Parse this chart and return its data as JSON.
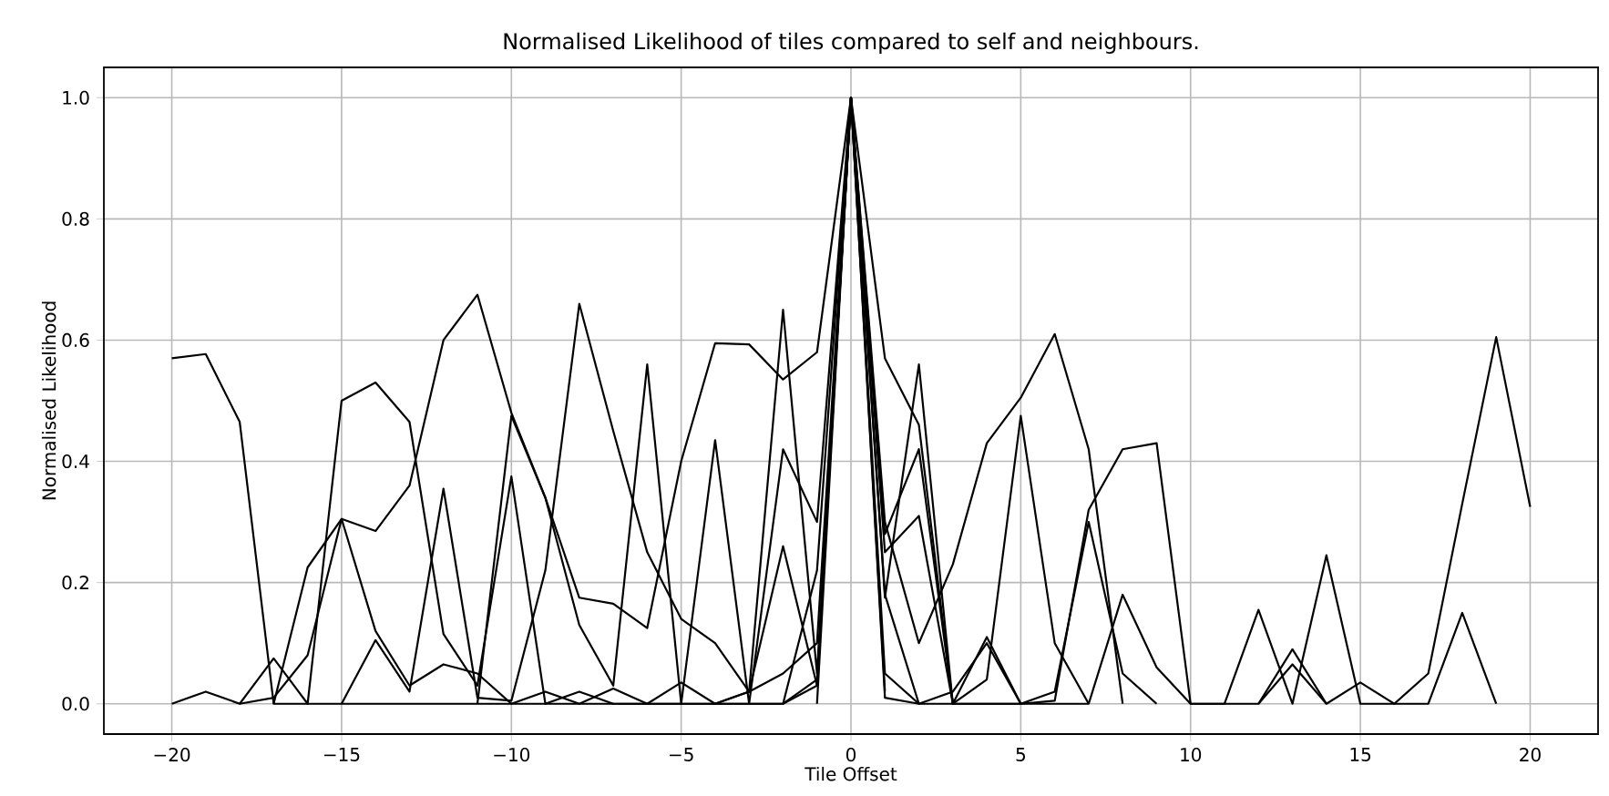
{
  "chart_data": {
    "type": "line",
    "title": "Normalised Likelihood of tiles compared to self and neighbours.",
    "xlabel": "Tile Offset",
    "ylabel": "Normalised Likelihood",
    "series": [
      {
        "color": "#000000",
        "x": [
          -20,
          -19,
          -18,
          -17,
          -16,
          -15,
          -14,
          -13,
          -12,
          -11,
          -10,
          -9,
          -8,
          -7,
          -6,
          -5,
          -4,
          -3,
          -2,
          -1,
          0,
          1
        ],
        "values": [
          0.57,
          0.577,
          0.465,
          0,
          0,
          0,
          0,
          0,
          0,
          0,
          0,
          0,
          0,
          0,
          0,
          0,
          0,
          0,
          0,
          0.03,
          1,
          0.02
        ]
      },
      {
        "color": "#000000",
        "x": [
          -20,
          -19,
          -18,
          -17,
          -16,
          -15,
          -14,
          -13,
          -12,
          -11,
          -10,
          -9,
          -8,
          -7,
          -6,
          -5,
          -4,
          -3,
          -2,
          -1,
          0,
          1,
          2
        ],
        "values": [
          0,
          0.02,
          0,
          0.075,
          0,
          0.5,
          0.53,
          0.465,
          0.115,
          0.03,
          0.375,
          0,
          0.02,
          0,
          0,
          0,
          0,
          0,
          0,
          0.04,
          1,
          0.18,
          0
        ]
      },
      {
        "color": "#000000",
        "x": [
          -17,
          -16,
          -15,
          -14,
          -13,
          -12,
          -11,
          -10,
          -9,
          -8,
          -7,
          -6,
          -5,
          -4,
          -3,
          -2,
          -1,
          0,
          1,
          2,
          3
        ],
        "values": [
          0,
          0.225,
          0.305,
          0.285,
          0.36,
          0.6,
          0.675,
          0.48,
          0.34,
          0.175,
          0.165,
          0.125,
          0.4,
          0.595,
          0.593,
          0.535,
          0.58,
          1,
          0.57,
          0.46,
          0
        ]
      },
      {
        "color": "#000000",
        "x": [
          -18,
          -17,
          -16,
          -15,
          -14,
          -13,
          -12,
          -11,
          -10,
          -9,
          -8,
          -7,
          -6,
          -5,
          -4,
          -3,
          -2,
          -1,
          0,
          1,
          2,
          3,
          4,
          5
        ],
        "values": [
          0,
          0.01,
          0.08,
          0.305,
          0.12,
          0.03,
          0.065,
          0.05,
          0,
          0.02,
          0,
          0.025,
          0,
          0.035,
          0,
          0.02,
          0.26,
          0.03,
          1,
          0.25,
          0.31,
          0,
          0.11,
          0
        ]
      },
      {
        "color": "#000000",
        "x": [
          -15,
          -14,
          -13,
          -12,
          -11,
          -10,
          -9,
          -8,
          -7,
          -6,
          -5,
          -4,
          -3,
          -2,
          -1,
          0,
          1,
          2,
          3,
          4,
          5,
          6,
          7
        ],
        "values": [
          0,
          0.105,
          0.02,
          0.355,
          0.01,
          0.005,
          0.22,
          0.66,
          0.45,
          0.25,
          0.14,
          0.1,
          0.02,
          0.65,
          0.05,
          1,
          0.175,
          0.56,
          0,
          0.04,
          0.475,
          0.1,
          0
        ]
      },
      {
        "color": "#000000",
        "x": [
          -11,
          -10,
          -9,
          -8,
          -7,
          -6,
          -5,
          -4,
          -3,
          -2,
          -1,
          0,
          1,
          2,
          3,
          4,
          5,
          6,
          7,
          8,
          9
        ],
        "values": [
          0,
          0.475,
          0.34,
          0.13,
          0.03,
          0.56,
          0,
          0.435,
          0,
          0.42,
          0.3,
          1,
          0.28,
          0.42,
          0,
          0,
          0,
          0.02,
          0.3,
          0.05,
          0
        ]
      },
      {
        "color": "#000000",
        "x": [
          -2,
          -1,
          0,
          1,
          2,
          3,
          4,
          5,
          6,
          7,
          8
        ],
        "values": [
          0,
          0.22,
          1,
          0.3,
          0.1,
          0.23,
          0.43,
          0.505,
          0.61,
          0.42,
          0
        ]
      },
      {
        "color": "#000000",
        "x": [
          -4,
          -3,
          -2,
          -1,
          0,
          1,
          2,
          3,
          4,
          5,
          6,
          7,
          8,
          9,
          10,
          11,
          12,
          13,
          14
        ],
        "values": [
          0,
          0.02,
          0.05,
          0.1,
          1,
          0.05,
          0,
          0.02,
          0.1,
          0,
          0.005,
          0.32,
          0.42,
          0.43,
          0,
          0,
          0,
          0.09,
          0
        ]
      },
      {
        "color": "#000000",
        "x": [
          -1,
          0,
          1,
          2,
          3,
          4,
          5,
          6,
          7,
          8,
          9,
          10,
          11,
          12,
          13,
          14,
          15,
          16,
          17,
          18,
          19,
          20
        ],
        "values": [
          0,
          1,
          0.01,
          0,
          0,
          0,
          0,
          0,
          0,
          0.18,
          0.06,
          0,
          0,
          0.155,
          0,
          0.245,
          0,
          0,
          0.05,
          0.33,
          0.605,
          0.325
        ]
      },
      {
        "color": "#000000",
        "x": [
          12,
          13,
          14,
          15,
          16,
          17,
          18,
          19
        ],
        "values": [
          0,
          0.065,
          0,
          0.035,
          0,
          0,
          0.15,
          0
        ]
      }
    ],
    "xlim": [
      -22,
      22
    ],
    "ylim": [
      -0.05,
      1.05
    ],
    "xticks": [
      {
        "value": -20,
        "label": "−20"
      },
      {
        "value": -15,
        "label": "−15"
      },
      {
        "value": -10,
        "label": "−10"
      },
      {
        "value": -5,
        "label": "−5"
      },
      0,
      5,
      10,
      15,
      20
    ],
    "yticks": [
      {
        "value": 0,
        "label": "0.0"
      },
      {
        "value": 0.2,
        "label": "0.2"
      },
      {
        "value": 0.4,
        "label": "0.4"
      },
      {
        "value": 0.6,
        "label": "0.6"
      },
      {
        "value": 0.8,
        "label": "0.8"
      },
      {
        "value": 1.0,
        "label": "1.0"
      }
    ],
    "grid": true
  }
}
